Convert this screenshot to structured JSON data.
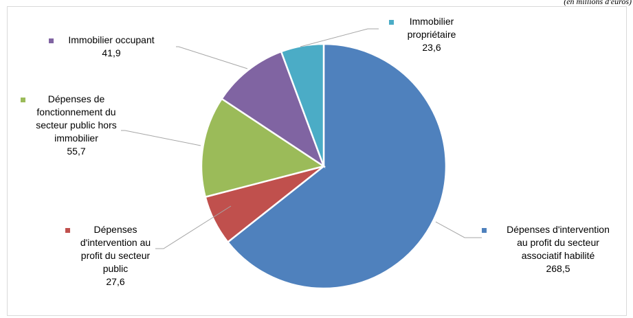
{
  "unit_note": "(en millions d'euros)",
  "chart_data": {
    "type": "pie",
    "title": "",
    "slices": [
      {
        "label": [
          "Dépenses d'intervention",
          "au profit du secteur",
          "associatif habilité"
        ],
        "value": 268.5,
        "value_label": "268,5",
        "color": "#4F81BD"
      },
      {
        "label": [
          "Dépenses",
          "d'intervention au",
          "profit du secteur",
          "public"
        ],
        "value": 27.6,
        "value_label": "27,6",
        "color": "#C0504D"
      },
      {
        "label": [
          "Dépenses de",
          "fonctionnement du",
          "secteur public hors",
          "immobilier"
        ],
        "value": 55.7,
        "value_label": "55,7",
        "color": "#9BBB59"
      },
      {
        "label": [
          "Immobilier occupant"
        ],
        "value": 41.9,
        "value_label": "41,9",
        "color": "#8064A2"
      },
      {
        "label": [
          "Immobilier",
          "propriétaire"
        ],
        "value": 23.6,
        "value_label": "23,6",
        "color": "#4BACC6"
      }
    ],
    "legend": "none",
    "data_labels": "outside with leader lines"
  }
}
